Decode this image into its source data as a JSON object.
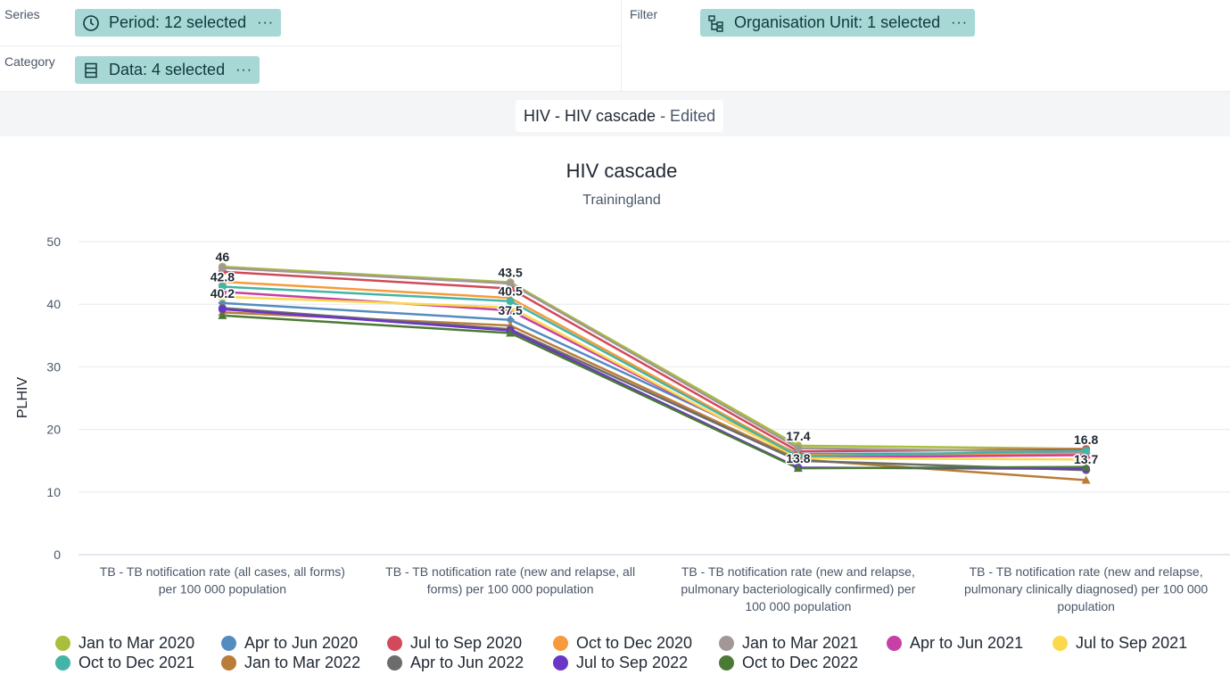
{
  "layout": {
    "series_label": "Series",
    "category_label": "Category",
    "filter_label": "Filter",
    "period_chip": "Period: 12 selected",
    "data_chip": "Data: 4 selected",
    "orgunit_chip": "Organisation Unit: 1 selected",
    "more": "···"
  },
  "visualization": {
    "title_prefix": "HIV - HIV cascade",
    "edited": "- Edited"
  },
  "chart_data": {
    "type": "line",
    "title": "HIV cascade",
    "subtitle": "Trainingland",
    "ylabel": "PLHIV",
    "xlabel": "",
    "ylim": [
      0,
      50
    ],
    "yticks": [
      "0",
      "10",
      "20",
      "30",
      "40",
      "50"
    ],
    "grid": true,
    "legend_position": "bottom",
    "categories": [
      [
        "TB - TB notification rate (all cases, all forms)",
        "per 100 000 population"
      ],
      [
        "TB - TB notification rate (new and relapse, all",
        "forms) per 100 000 population"
      ],
      [
        "TB - TB notification rate (new and relapse,",
        "pulmonary bacteriologically confirmed) per",
        "100 000 population"
      ],
      [
        "TB - TB notification rate (new and relapse,",
        "pulmonary clinically diagnosed) per 100 000",
        "population"
      ]
    ],
    "series": [
      {
        "name": "Jan to Mar 2020",
        "color": "#a9be3b",
        "marker": "circle",
        "values": [
          46.0,
          43.5,
          17.4,
          16.9
        ]
      },
      {
        "name": "Apr to Jun 2020",
        "color": "#558cc0",
        "marker": "diamond",
        "values": [
          40.2,
          37.5,
          16.1,
          16.2
        ]
      },
      {
        "name": "Jul to Sep 2020",
        "color": "#d1495a",
        "marker": "circle",
        "values": [
          45.2,
          42.5,
          16.5,
          16.8
        ]
      },
      {
        "name": "Oct to Dec 2020",
        "color": "#f79a3b",
        "marker": "triangle",
        "values": [
          43.6,
          41.0,
          15.9,
          16.1
        ]
      },
      {
        "name": "Jan to Mar 2021",
        "color": "#a29797",
        "marker": "circle",
        "values": [
          45.8,
          43.3,
          17.0,
          16.4
        ]
      },
      {
        "name": "Apr to Jun 2021",
        "color": "#c740a6",
        "marker": "triangle",
        "values": [
          42.0,
          39.0,
          15.5,
          15.9
        ]
      },
      {
        "name": "Jul to Sep 2021",
        "color": "#fcd94c",
        "marker": "triangle",
        "values": [
          41.2,
          39.5,
          15.4,
          15.2
        ]
      },
      {
        "name": "Oct to Dec 2021",
        "color": "#43b5a6",
        "marker": "circle",
        "values": [
          42.8,
          40.5,
          15.7,
          16.6
        ]
      },
      {
        "name": "Jan to Mar 2022",
        "color": "#b97d38",
        "marker": "triangle",
        "values": [
          38.7,
          36.6,
          15.2,
          11.9
        ]
      },
      {
        "name": "Apr to Jun 2022",
        "color": "#6c6c6c",
        "marker": "circle",
        "values": [
          39.4,
          36.0,
          15.0,
          13.5
        ]
      },
      {
        "name": "Jul to Sep 2022",
        "color": "#6b35c8",
        "marker": "circle",
        "values": [
          39.2,
          35.8,
          13.9,
          13.7
        ]
      },
      {
        "name": "Oct to Dec 2022",
        "color": "#4a7a35",
        "marker": "triangle",
        "values": [
          38.2,
          35.4,
          13.8,
          14.0
        ]
      }
    ],
    "data_labels": [
      {
        "category": 0,
        "value": 46,
        "text": "46"
      },
      {
        "category": 0,
        "value": 42.8,
        "text": "42.8"
      },
      {
        "category": 0,
        "value": 40.2,
        "text": "40.2"
      },
      {
        "category": 1,
        "value": 43.5,
        "text": "43.5"
      },
      {
        "category": 1,
        "value": 40.5,
        "text": "40.5"
      },
      {
        "category": 1,
        "value": 37.5,
        "text": "37.5"
      },
      {
        "category": 2,
        "value": 17.4,
        "text": "17.4"
      },
      {
        "category": 2,
        "value": 13.8,
        "text": "13.8"
      },
      {
        "category": 3,
        "value": 16.8,
        "text": "16.8"
      },
      {
        "category": 3,
        "value": 13.7,
        "text": "13.7"
      }
    ]
  }
}
